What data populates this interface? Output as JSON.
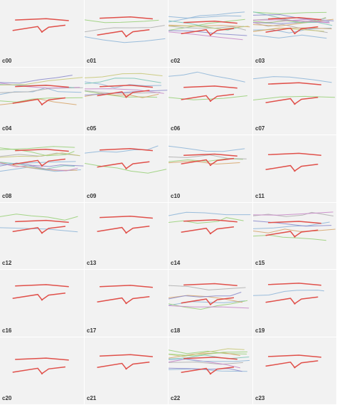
{
  "labels": [
    "c00",
    "c01",
    "c02",
    "c03",
    "c04",
    "c05",
    "c06",
    "c07",
    "c08",
    "c09",
    "c10",
    "c11",
    "c12",
    "c13",
    "c14",
    "c15",
    "c16",
    "c17",
    "c18",
    "c19",
    "c20",
    "c21",
    "c22",
    "c23"
  ],
  "colors": {
    "panel_bg": "#f2f2f2",
    "label": "#333333",
    "primary": "#e0504a",
    "others": [
      "#8fb6d8",
      "#9ad07a",
      "#b0b0b0",
      "#d7a56c",
      "#8c8ccc",
      "#c98ac9",
      "#7fc7b8",
      "#c8c878"
    ]
  }
}
